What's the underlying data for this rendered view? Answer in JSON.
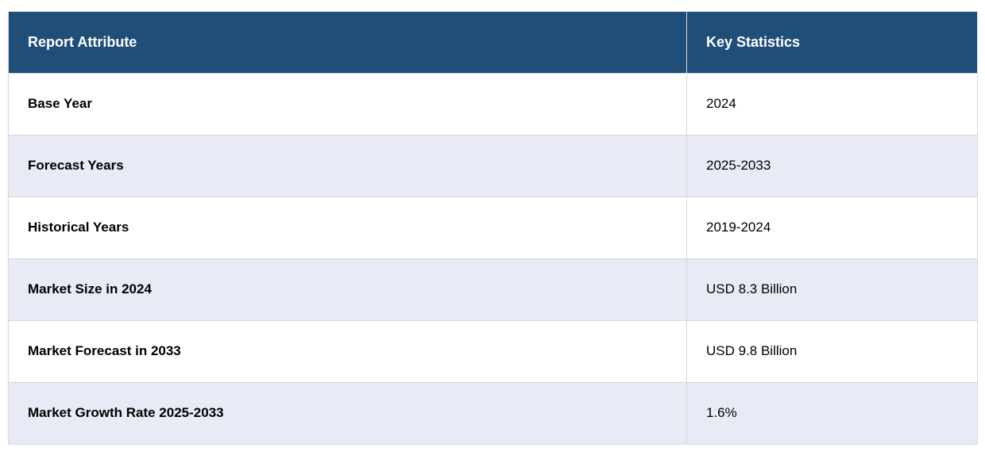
{
  "table": {
    "headers": {
      "attribute": "Report Attribute",
      "statistics": "Key Statistics"
    },
    "rows": [
      {
        "attribute": "Base Year",
        "value": "2024"
      },
      {
        "attribute": "Forecast Years",
        "value": "2025-2033"
      },
      {
        "attribute": "Historical Years",
        "value": "2019-2024"
      },
      {
        "attribute": "Market Size in 2024",
        "value": "USD 8.3 Billion"
      },
      {
        "attribute": "Market Forecast in 2033",
        "value": "USD 9.8 Billion"
      },
      {
        "attribute": "Market Growth Rate 2025-2033",
        "value": "1.6%"
      }
    ]
  },
  "colors": {
    "header_bg": "#1F4E79",
    "header_text": "#FFFFFF",
    "row_bg": "#FFFFFF",
    "row_alt_bg": "#E8EAF6",
    "border": "#D8D8D8",
    "body_text": "#000000"
  },
  "chart_data": {
    "type": "table",
    "title": "Report Attribute / Key Statistics",
    "columns": [
      "Report Attribute",
      "Key Statistics"
    ],
    "rows": [
      [
        "Base Year",
        "2024"
      ],
      [
        "Forecast Years",
        "2025-2033"
      ],
      [
        "Historical Years",
        "2019-2024"
      ],
      [
        "Market Size in 2024",
        "USD 8.3 Billion"
      ],
      [
        "Market Forecast in 2033",
        "USD 9.8 Billion"
      ],
      [
        "Market Growth Rate 2025-2033",
        "1.6%"
      ]
    ]
  }
}
